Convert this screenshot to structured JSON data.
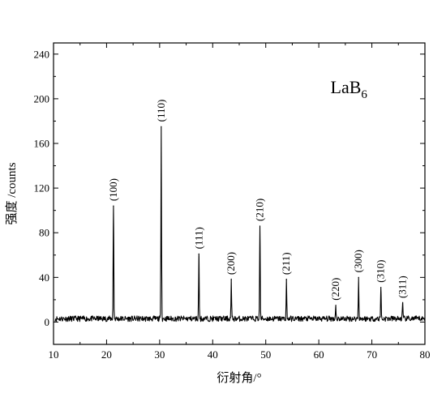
{
  "chart_data": {
    "type": "line",
    "title": "",
    "xlabel": "衍射角/°",
    "ylabel": "强度 /counts",
    "xlim": [
      10,
      80
    ],
    "ylim": [
      -20,
      250
    ],
    "x_ticks": [
      10,
      20,
      30,
      40,
      50,
      60,
      70,
      80
    ],
    "y_ticks": [
      0,
      40,
      80,
      120,
      160,
      200,
      240
    ],
    "grid": false,
    "legend": "none",
    "annotation": {
      "base": "LaB",
      "sub": "6"
    },
    "baseline": 3,
    "peaks": [
      {
        "x": 21.3,
        "y": 104,
        "label": "(100)"
      },
      {
        "x": 30.3,
        "y": 175,
        "label": "(110)"
      },
      {
        "x": 37.4,
        "y": 61,
        "label": "(111)"
      },
      {
        "x": 43.5,
        "y": 38,
        "label": "(200)"
      },
      {
        "x": 48.9,
        "y": 86,
        "label": "(210)"
      },
      {
        "x": 53.9,
        "y": 38,
        "label": "(211)"
      },
      {
        "x": 63.2,
        "y": 15,
        "label": "(220)"
      },
      {
        "x": 67.5,
        "y": 40,
        "label": "(300)"
      },
      {
        "x": 71.7,
        "y": 31,
        "label": "(310)"
      },
      {
        "x": 75.8,
        "y": 17,
        "label": "(311)"
      }
    ],
    "colors": {
      "line": "#000000",
      "axes": "#000000"
    }
  }
}
